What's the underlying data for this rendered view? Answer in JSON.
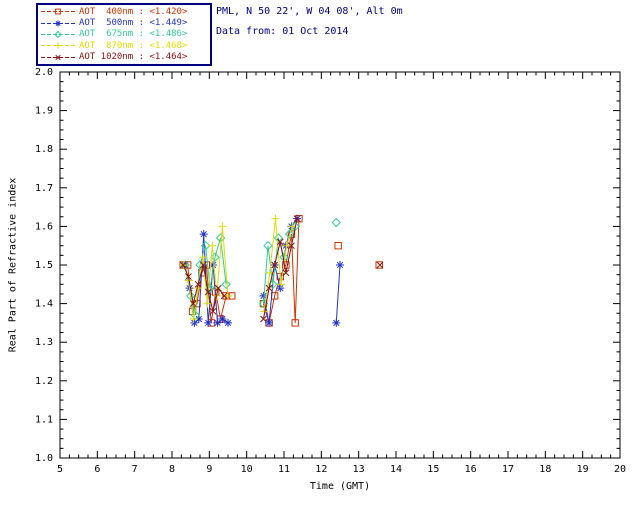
{
  "header": {
    "line1": "PML, N 50 22', W 04 08', Alt 0m",
    "line2": "Data from: 01 Oct 2014"
  },
  "legend": {
    "border_color": "#000080",
    "entries": [
      {
        "label": "AOT  400nm : <1.420>",
        "color": "#cc3300",
        "marker": "square"
      },
      {
        "label": "AOT  500nm : <1.449>",
        "color": "#2233cc",
        "marker": "asterisk"
      },
      {
        "label": "AOT  675nm : <1.486>",
        "color": "#33cc99",
        "marker": "diamond"
      },
      {
        "label": "AOT  870nm : <1.468>",
        "color": "#dddd00",
        "marker": "plus"
      },
      {
        "label": "AOT 1020nm : <1.464>",
        "color": "#881111",
        "marker": "cross"
      }
    ]
  },
  "chart_data": {
    "type": "line",
    "title": "",
    "xlabel": "Time (GMT)",
    "ylabel": "Real Part of Refractive index",
    "xlim": [
      5,
      20
    ],
    "ylim": [
      1.0,
      2.0
    ],
    "xticks": [
      5,
      6,
      7,
      8,
      9,
      10,
      11,
      12,
      13,
      14,
      15,
      16,
      17,
      18,
      19,
      20
    ],
    "yticks": [
      1.0,
      1.1,
      1.2,
      1.3,
      1.4,
      1.5,
      1.6,
      1.7,
      1.8,
      1.9,
      2.0
    ],
    "grid": false,
    "legend_position": "top-left",
    "gap_break": 0.6,
    "series": [
      {
        "name": "AOT 400nm",
        "mean": 1.42,
        "color": "#cc3300",
        "marker": "square",
        "points": [
          [
            8.3,
            1.5
          ],
          [
            8.42,
            1.5
          ],
          [
            8.55,
            1.38
          ],
          [
            8.67,
            1.4
          ],
          [
            8.8,
            1.48
          ],
          [
            8.92,
            1.5
          ],
          [
            9.05,
            1.35
          ],
          [
            9.17,
            1.43
          ],
          [
            9.3,
            1.36
          ],
          [
            9.45,
            1.42
          ],
          [
            9.6,
            1.42
          ],
          [
            10.45,
            1.4
          ],
          [
            10.6,
            1.35
          ],
          [
            10.75,
            1.42
          ],
          [
            10.9,
            1.47
          ],
          [
            11.05,
            1.5
          ],
          [
            11.2,
            1.58
          ],
          [
            11.3,
            1.35
          ],
          [
            11.4,
            1.62
          ],
          [
            12.45,
            1.55
          ],
          [
            13.55,
            1.5
          ]
        ]
      },
      {
        "name": "AOT 500nm",
        "mean": 1.449,
        "color": "#2233cc",
        "marker": "asterisk",
        "points": [
          [
            8.35,
            1.5
          ],
          [
            8.47,
            1.44
          ],
          [
            8.6,
            1.35
          ],
          [
            8.72,
            1.36
          ],
          [
            8.85,
            1.58
          ],
          [
            8.97,
            1.35
          ],
          [
            9.1,
            1.5
          ],
          [
            9.22,
            1.35
          ],
          [
            9.35,
            1.36
          ],
          [
            9.5,
            1.35
          ],
          [
            10.45,
            1.42
          ],
          [
            10.6,
            1.35
          ],
          [
            10.75,
            1.5
          ],
          [
            10.9,
            1.44
          ],
          [
            11.05,
            1.55
          ],
          [
            11.2,
            1.6
          ],
          [
            11.35,
            1.62
          ],
          [
            12.4,
            1.35
          ],
          [
            12.5,
            1.5
          ]
        ]
      },
      {
        "name": "AOT 675nm",
        "mean": 1.486,
        "color": "#33cc99",
        "marker": "diamond",
        "points": [
          [
            8.35,
            1.5
          ],
          [
            8.5,
            1.42
          ],
          [
            8.62,
            1.37
          ],
          [
            8.75,
            1.5
          ],
          [
            8.9,
            1.55
          ],
          [
            9.02,
            1.44
          ],
          [
            9.15,
            1.52
          ],
          [
            9.3,
            1.57
          ],
          [
            9.45,
            1.45
          ],
          [
            10.45,
            1.4
          ],
          [
            10.57,
            1.55
          ],
          [
            10.7,
            1.45
          ],
          [
            10.85,
            1.57
          ],
          [
            11.0,
            1.52
          ],
          [
            11.15,
            1.58
          ],
          [
            11.3,
            1.6
          ],
          [
            12.4,
            1.61
          ]
        ]
      },
      {
        "name": "AOT 870nm",
        "mean": 1.468,
        "color": "#dddd00",
        "marker": "plus",
        "points": [
          [
            8.32,
            1.5
          ],
          [
            8.45,
            1.46
          ],
          [
            8.58,
            1.36
          ],
          [
            8.7,
            1.44
          ],
          [
            8.83,
            1.52
          ],
          [
            8.95,
            1.4
          ],
          [
            9.08,
            1.55
          ],
          [
            9.2,
            1.42
          ],
          [
            9.35,
            1.6
          ],
          [
            9.5,
            1.42
          ],
          [
            10.47,
            1.38
          ],
          [
            10.62,
            1.48
          ],
          [
            10.77,
            1.62
          ],
          [
            10.92,
            1.45
          ],
          [
            11.07,
            1.55
          ],
          [
            11.22,
            1.6
          ]
        ]
      },
      {
        "name": "AOT 1020nm",
        "mean": 1.464,
        "color": "#881111",
        "marker": "cross",
        "points": [
          [
            8.3,
            1.5
          ],
          [
            8.44,
            1.47
          ],
          [
            8.57,
            1.4
          ],
          [
            8.7,
            1.45
          ],
          [
            8.84,
            1.5
          ],
          [
            8.97,
            1.43
          ],
          [
            9.1,
            1.38
          ],
          [
            9.24,
            1.44
          ],
          [
            9.4,
            1.42
          ],
          [
            10.45,
            1.36
          ],
          [
            10.6,
            1.44
          ],
          [
            10.75,
            1.5
          ],
          [
            10.9,
            1.56
          ],
          [
            11.05,
            1.48
          ],
          [
            11.2,
            1.55
          ],
          [
            11.35,
            1.62
          ],
          [
            13.57,
            1.5
          ]
        ]
      }
    ]
  }
}
